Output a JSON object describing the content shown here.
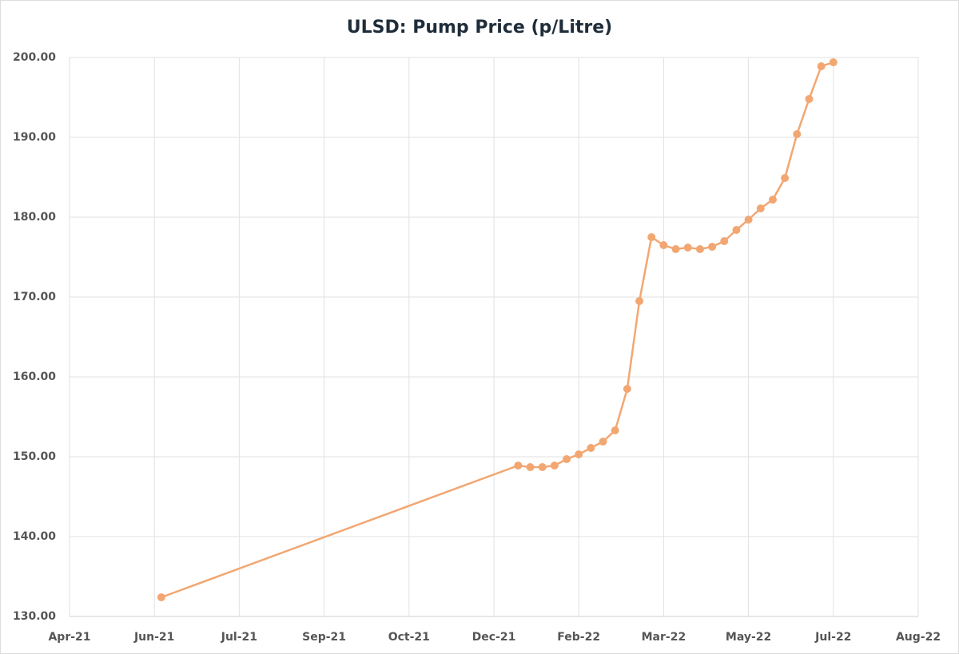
{
  "chart_data": {
    "type": "line",
    "title": "ULSD: Pump Price (p/Litre)",
    "x": [
      44359,
      44565,
      44572,
      44579,
      44586,
      44593,
      44600,
      44607,
      44614,
      44621,
      44628,
      44635,
      44642,
      44649,
      44656,
      44663,
      44670,
      44677,
      44684,
      44691,
      44698,
      44705,
      44712,
      44719,
      44726,
      44733,
      44740,
      44747
    ],
    "series": [
      {
        "color": "#f2a772",
        "values": [
          132.4,
          148.9,
          148.7,
          148.7,
          148.9,
          149.7,
          150.3,
          151.1,
          151.9,
          153.3,
          158.5,
          169.5,
          177.5,
          176.5,
          176.0,
          176.2,
          176.0,
          176.3,
          177.0,
          178.4,
          179.7,
          181.1,
          182.2,
          184.9,
          190.4,
          194.8,
          198.9,
          199.4
        ]
      }
    ],
    "xlim": [
      44306,
      44796
    ],
    "xticks": [
      {
        "value": 44306,
        "label": "Apr-21"
      },
      {
        "value": 44355,
        "label": "Jun-21"
      },
      {
        "value": 44404,
        "label": "Jul-21"
      },
      {
        "value": 44453,
        "label": "Sep-21"
      },
      {
        "value": 44502,
        "label": "Oct-21"
      },
      {
        "value": 44551,
        "label": "Dec-21"
      },
      {
        "value": 44600,
        "label": "Feb-22"
      },
      {
        "value": 44649,
        "label": "Mar-22"
      },
      {
        "value": 44698,
        "label": "May-22"
      },
      {
        "value": 44747,
        "label": "Jul-22"
      },
      {
        "value": 44796,
        "label": "Aug-22"
      }
    ],
    "ylim": [
      130,
      200
    ],
    "yticks": [
      {
        "value": 130,
        "label": "130.00"
      },
      {
        "value": 140,
        "label": "140.00"
      },
      {
        "value": 150,
        "label": "150.00"
      },
      {
        "value": 160,
        "label": "160.00"
      },
      {
        "value": 170,
        "label": "170.00"
      },
      {
        "value": 180,
        "label": "180.00"
      },
      {
        "value": 190,
        "label": "190.00"
      },
      {
        "value": 200,
        "label": "200.00"
      }
    ],
    "grid": true
  }
}
